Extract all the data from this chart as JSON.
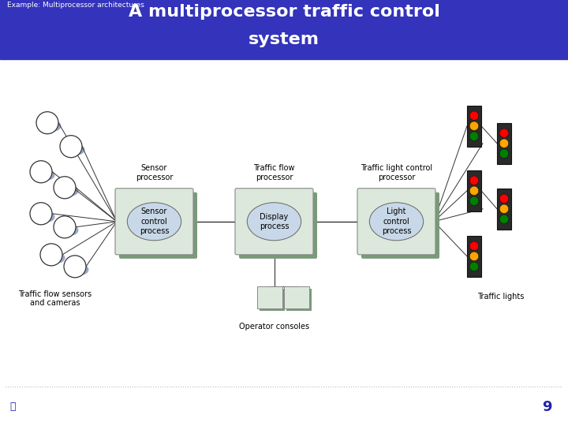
{
  "title_line1": "A multiprocessor traffic control",
  "title_line2": "system",
  "subtitle": "Example: Multiprocessor architectures",
  "header_bg": "#3333bb",
  "header_text_color": "#ffffff",
  "footer_text_color": "#2222aa",
  "page_number": "9",
  "bg_color": "#ffffff",
  "box_fill": "#dce8dc",
  "box_shadow": "#7a9a7a",
  "box_border": "#888888",
  "ellipse_fill": "#c8d8e8",
  "ellipse_border": "#666666",
  "sensor_label": "Sensor\nprocessor",
  "sensor_process_label": "Sensor\ncontrol\nprocess",
  "traffic_flow_label": "Traffic flow\nprocessor",
  "display_label": "Display\nprocess",
  "light_control_label": "Traffic light control\nprocessor",
  "light_process_label": "Light\ncontrol\nprocess",
  "sensors_caption": "Traffic flow sensors\nand cameras",
  "consoles_caption": "Operator consoles",
  "lights_caption": "Traffic lights",
  "footer_icon_color": "#2222aa",
  "sensor_shadow_color": "#8899bb",
  "line_color": "#333333"
}
